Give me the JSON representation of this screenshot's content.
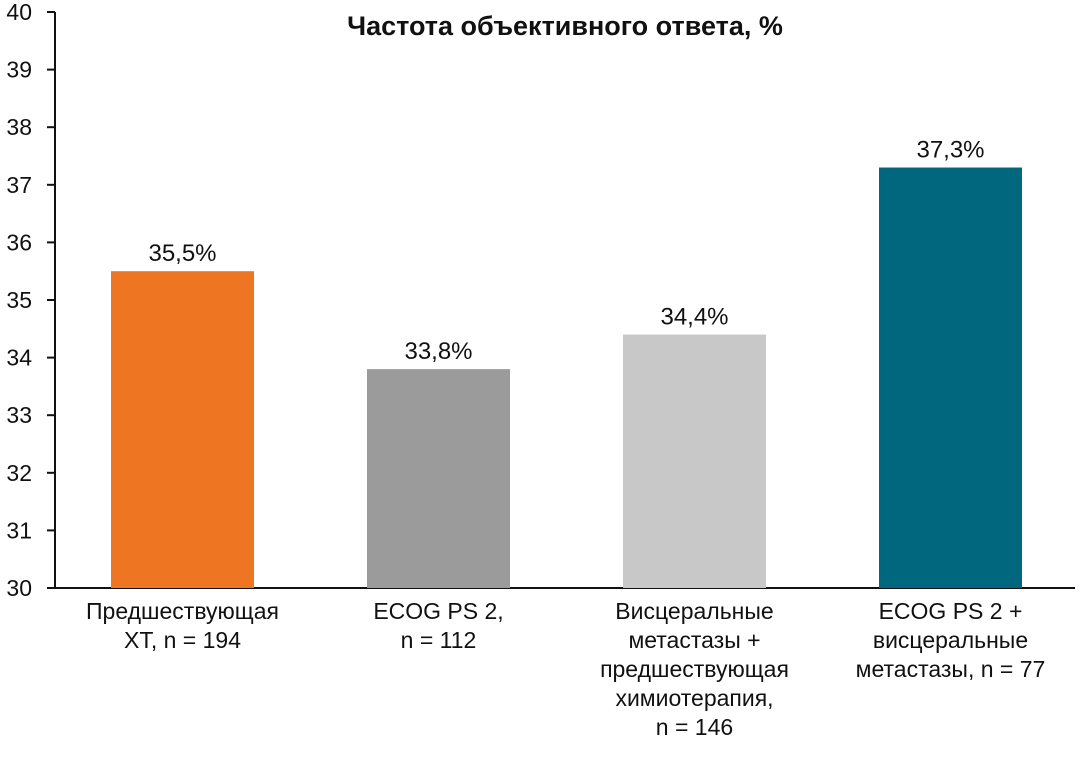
{
  "chart_data": {
    "type": "bar",
    "title": "Частота объективного ответа, %",
    "xlabel": "",
    "ylabel": "",
    "ylim": [
      30,
      40
    ],
    "yticks": [
      "30",
      "31",
      "32",
      "33",
      "34",
      "35",
      "36",
      "37",
      "38",
      "39",
      "40"
    ],
    "grid": false,
    "categories": [
      [
        "Предшествующая",
        "ХТ, n = 194"
      ],
      [
        "ECOG PS 2,",
        "n = 112"
      ],
      [
        "Висцеральные",
        "метастазы +",
        "предшествующая",
        "химиотерапия,",
        "n = 146"
      ],
      [
        "ECOG PS 2 +",
        "висцеральные",
        "метастазы, n = 77"
      ]
    ],
    "values": [
      35.5,
      33.8,
      34.4,
      37.3
    ],
    "data_labels": [
      "35,5%",
      "33,8%",
      "34,4%",
      "37,3%"
    ],
    "colors": [
      "#ee7623",
      "#9b9b9b",
      "#c8c8c8",
      "#00677f"
    ]
  }
}
